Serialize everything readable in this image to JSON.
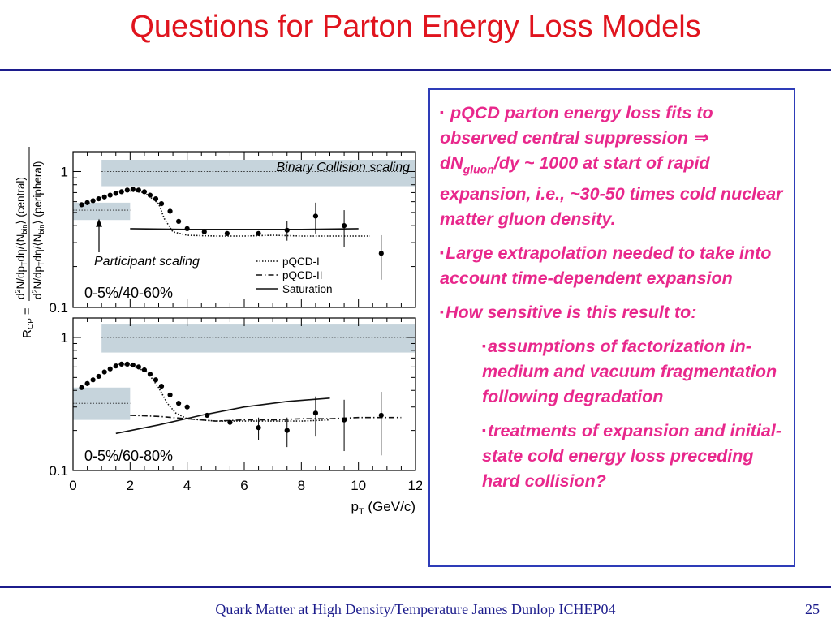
{
  "slide": {
    "title": "Questions for Parton Energy Loss Models",
    "footer": "Quark Matter at High Density/Temperature James Dunlop ICHEP04",
    "page_number": "25",
    "colors": {
      "title": "#e0141e",
      "rule": "#1c1c8c",
      "box_border": "#2e3cb8",
      "bullet_text": "#e8288c",
      "band": "#c6d4dc"
    }
  },
  "bullets": {
    "b1_pre": "pQCD parton energy loss fits to observed central suppression ⇒ dN",
    "b1_sub": "gluon",
    "b1_post": "/dy ~ 1000 at start of rapid expansion, i.e., ~30-50 times cold nuclear matter gluon density.",
    "b2": "Large extrapolation needed to take into account time-dependent expansion",
    "b3": "How sensitive is this result to:",
    "b4": "assumptions of factorization in-medium and vacuum fragmentation following degradation",
    "b5": "treatments of expansion and initial-state cold energy loss preceding hard collision?",
    "bullet_glyph": "▪"
  },
  "chart_data": [
    {
      "type": "scatter",
      "panel": "top",
      "annotations": [
        "Binary Collision scaling",
        "Participant scaling"
      ],
      "label": "0-5%/40-60%",
      "ylabel": "R_CP = d²N/dp_T dη/⟨N_bin⟩ (central) / d²N/dp_T dη/⟨N_bin⟩ (peripheral)",
      "yscale": "log",
      "ylim": [
        0.1,
        1.4
      ],
      "xlim": [
        0,
        12
      ],
      "y_ticks": [
        "1",
        "0.1"
      ],
      "legend": [
        "pQCD-I",
        "pQCD-II",
        "Saturation"
      ],
      "legend_placement": "bottom-right",
      "binary_band": {
        "x": [
          1,
          12
        ],
        "y": [
          0.78,
          1.22
        ]
      },
      "participant_band": {
        "x": [
          0,
          2
        ],
        "y": [
          0.44,
          0.59
        ]
      },
      "points": [
        {
          "x": 0.3,
          "y": 0.57
        },
        {
          "x": 0.5,
          "y": 0.59
        },
        {
          "x": 0.7,
          "y": 0.61
        },
        {
          "x": 0.9,
          "y": 0.63
        },
        {
          "x": 1.1,
          "y": 0.65
        },
        {
          "x": 1.3,
          "y": 0.67
        },
        {
          "x": 1.5,
          "y": 0.69
        },
        {
          "x": 1.7,
          "y": 0.71
        },
        {
          "x": 1.9,
          "y": 0.73
        },
        {
          "x": 2.1,
          "y": 0.74
        },
        {
          "x": 2.3,
          "y": 0.73
        },
        {
          "x": 2.5,
          "y": 0.71
        },
        {
          "x": 2.7,
          "y": 0.67
        },
        {
          "x": 2.9,
          "y": 0.63
        },
        {
          "x": 3.1,
          "y": 0.58
        },
        {
          "x": 3.4,
          "y": 0.51
        },
        {
          "x": 3.7,
          "y": 0.43
        },
        {
          "x": 4.0,
          "y": 0.38
        },
        {
          "x": 4.6,
          "y": 0.36
        },
        {
          "x": 5.4,
          "y": 0.35
        },
        {
          "x": 6.5,
          "y": 0.35
        },
        {
          "x": 7.5,
          "y": 0.37,
          "err": 0.06
        },
        {
          "x": 8.5,
          "y": 0.47,
          "err": 0.12
        },
        {
          "x": 9.5,
          "y": 0.4,
          "err": 0.12
        },
        {
          "x": 10.8,
          "y": 0.25,
          "err": 0.09
        }
      ],
      "pqcd_i": [
        [
          2.0,
          0.72
        ],
        [
          2.5,
          0.7
        ],
        [
          3.0,
          0.58
        ],
        [
          3.2,
          0.45
        ],
        [
          3.5,
          0.36
        ],
        [
          4.0,
          0.34
        ],
        [
          5.0,
          0.335
        ],
        [
          6.0,
          0.335
        ],
        [
          7.0,
          0.34
        ],
        [
          8.0,
          0.335
        ],
        [
          9.0,
          0.335
        ],
        [
          10.4,
          0.335
        ]
      ],
      "saturation": [
        [
          2.0,
          0.38
        ],
        [
          4.0,
          0.375
        ],
        [
          6.0,
          0.375
        ],
        [
          8.0,
          0.375
        ],
        [
          10.0,
          0.38
        ]
      ],
      "dotted_refs": [
        {
          "y": 1.0,
          "x": [
            1,
            12
          ]
        },
        {
          "y": 0.52,
          "x": [
            0,
            2
          ]
        }
      ]
    },
    {
      "type": "scatter",
      "panel": "bottom",
      "label": "0-5%/60-80%",
      "xlabel": "p_T (GeV/c)",
      "yscale": "log",
      "ylim": [
        0.1,
        1.4
      ],
      "xlim": [
        0,
        12
      ],
      "x_ticks": [
        0,
        2,
        4,
        6,
        8,
        10,
        12
      ],
      "y_ticks": [
        "1",
        "0.1"
      ],
      "binary_band": {
        "x": [
          1,
          12
        ],
        "y": [
          0.77,
          1.25
        ]
      },
      "participant_band": {
        "x": [
          0,
          2
        ],
        "y": [
          0.24,
          0.42
        ]
      },
      "points": [
        {
          "x": 0.3,
          "y": 0.42
        },
        {
          "x": 0.5,
          "y": 0.45
        },
        {
          "x": 0.7,
          "y": 0.48
        },
        {
          "x": 0.9,
          "y": 0.51
        },
        {
          "x": 1.1,
          "y": 0.55
        },
        {
          "x": 1.3,
          "y": 0.58
        },
        {
          "x": 1.5,
          "y": 0.61
        },
        {
          "x": 1.7,
          "y": 0.63
        },
        {
          "x": 1.9,
          "y": 0.63
        },
        {
          "x": 2.1,
          "y": 0.62
        },
        {
          "x": 2.3,
          "y": 0.6
        },
        {
          "x": 2.5,
          "y": 0.57
        },
        {
          "x": 2.7,
          "y": 0.53
        },
        {
          "x": 2.9,
          "y": 0.48
        },
        {
          "x": 3.1,
          "y": 0.43
        },
        {
          "x": 3.4,
          "y": 0.37
        },
        {
          "x": 3.7,
          "y": 0.32
        },
        {
          "x": 4.0,
          "y": 0.3
        },
        {
          "x": 4.7,
          "y": 0.26
        },
        {
          "x": 5.5,
          "y": 0.23
        },
        {
          "x": 6.5,
          "y": 0.21,
          "err": 0.04
        },
        {
          "x": 7.5,
          "y": 0.2,
          "err": 0.05
        },
        {
          "x": 8.5,
          "y": 0.27,
          "err": 0.09
        },
        {
          "x": 9.5,
          "y": 0.24,
          "err": 0.1
        },
        {
          "x": 10.8,
          "y": 0.26,
          "err": 0.13
        }
      ],
      "pqcd_i": [
        [
          1.5,
          0.63
        ],
        [
          2.0,
          0.62
        ],
        [
          2.6,
          0.55
        ],
        [
          3.0,
          0.42
        ],
        [
          3.3,
          0.32
        ],
        [
          3.6,
          0.27
        ],
        [
          4.0,
          0.245
        ],
        [
          5.0,
          0.235
        ],
        [
          6.0,
          0.235
        ],
        [
          7.0,
          0.235
        ],
        [
          8.0,
          0.235
        ],
        [
          9.0,
          0.24
        ]
      ],
      "pqcd_ii": [
        [
          2.0,
          0.26
        ],
        [
          3.0,
          0.255
        ],
        [
          4.0,
          0.245
        ],
        [
          5.0,
          0.235
        ],
        [
          6.0,
          0.24
        ],
        [
          7.0,
          0.24
        ],
        [
          8.0,
          0.245
        ],
        [
          9.0,
          0.245
        ],
        [
          10.0,
          0.25
        ],
        [
          11.5,
          0.25
        ]
      ],
      "saturation": [
        [
          1.5,
          0.19
        ],
        [
          3.0,
          0.22
        ],
        [
          4.5,
          0.26
        ],
        [
          6.0,
          0.3
        ],
        [
          7.5,
          0.33
        ],
        [
          9.0,
          0.35
        ]
      ],
      "dotted_refs": [
        {
          "y": 1.0,
          "x": [
            1,
            12
          ]
        },
        {
          "y": 0.32,
          "x": [
            0,
            2
          ]
        }
      ]
    }
  ]
}
